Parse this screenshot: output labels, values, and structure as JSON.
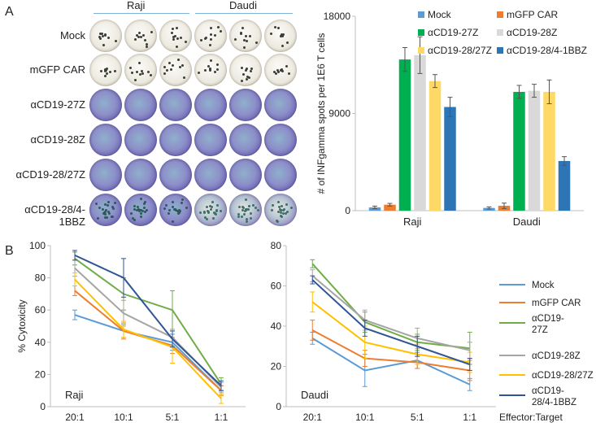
{
  "panel_a_label": "A",
  "panel_b_label": "B",
  "elispot": {
    "group_labels": [
      "Raji",
      "Daudi"
    ],
    "row_labels": [
      "Mock",
      "mGFP CAR",
      "αCD19-27Z",
      "αCD19-28Z",
      "αCD19-28/27Z",
      "αCD19-28/4-1BBZ"
    ]
  },
  "chart_data": [
    {
      "type": "bar",
      "title": "",
      "xlabel": "",
      "ylabel": "# of INFgamma spots per 1E6 T cells",
      "ylim": [
        0,
        18000
      ],
      "yticks": [
        "0",
        "9000",
        "18000"
      ],
      "yticks_values": [
        0,
        9000,
        18000
      ],
      "categories": [
        "Raji",
        "Daudi"
      ],
      "legend_position": "top",
      "series": [
        {
          "name": "Mock",
          "color": "#5b9bd5",
          "values": [
            300,
            250
          ],
          "errors": [
            120,
            100
          ]
        },
        {
          "name": "mGFP CAR",
          "color": "#ed7d31",
          "values": [
            550,
            450
          ],
          "errors": [
            120,
            250
          ]
        },
        {
          "name": "αCD19-27Z",
          "color": "#00b050",
          "values": [
            14000,
            11000
          ],
          "errors": [
            1100,
            600
          ]
        },
        {
          "name": "αCD19-28Z",
          "color": "#d9d9d9",
          "values": [
            14400,
            11100
          ],
          "errors": [
            1700,
            600
          ]
        },
        {
          "name": "αCD19-28/27Z",
          "color": "#ffd966",
          "values": [
            12000,
            11000
          ],
          "errors": [
            600,
            1100
          ]
        },
        {
          "name": "αCD19-28/4-1BBZ",
          "color": "#2e75b6",
          "values": [
            9600,
            4600
          ],
          "errors": [
            900,
            400
          ]
        }
      ]
    },
    {
      "type": "line",
      "title": "",
      "panel_label": "Raji",
      "ylabel": "% Cytoxicity",
      "ylim": [
        0,
        100
      ],
      "yticks": [
        "0",
        "20",
        "40",
        "60",
        "80",
        "100"
      ],
      "yticks_values": [
        0,
        20,
        40,
        60,
        80,
        100
      ],
      "categories": [
        "20:1",
        "10:1",
        "5:1",
        "1:1"
      ],
      "series": [
        {
          "name": "Mock",
          "color": "#5b9bd5",
          "values": [
            57,
            47,
            40,
            10
          ],
          "errors": [
            3,
            4,
            5,
            3
          ]
        },
        {
          "name": "mGFP CAR",
          "color": "#ed7d31",
          "values": [
            72,
            47,
            38,
            10
          ],
          "errors": [
            3,
            5,
            5,
            3
          ]
        },
        {
          "name": "αCD19-27Z",
          "color": "#70ad47",
          "values": [
            92,
            70,
            60,
            14
          ],
          "errors": [
            4,
            10,
            12,
            4
          ]
        },
        {
          "name": "αCD19-28Z",
          "color": "#a5a5a5",
          "values": [
            86,
            58,
            43,
            12
          ],
          "errors": [
            5,
            8,
            5,
            3
          ]
        },
        {
          "name": "αCD19-28/27Z",
          "color": "#ffc000",
          "values": [
            79,
            48,
            37,
            5
          ],
          "errors": [
            4,
            5,
            10,
            3
          ]
        },
        {
          "name": "αCD19-28/4-1BBZ",
          "color": "#2f5597",
          "values": [
            94,
            80,
            42,
            13
          ],
          "errors": [
            3,
            12,
            5,
            3
          ]
        }
      ]
    },
    {
      "type": "line",
      "title": "",
      "panel_label": "Daudi",
      "ylabel": "",
      "ylim": [
        0,
        80
      ],
      "yticks": [
        "0",
        "20",
        "40",
        "60",
        "80"
      ],
      "yticks_values": [
        0,
        20,
        40,
        60,
        80
      ],
      "categories": [
        "20:1",
        "10:1",
        "5:1",
        "1:1"
      ],
      "series": [
        {
          "name": "Mock",
          "color": "#5b9bd5",
          "values": [
            34,
            18,
            23,
            11
          ],
          "errors": [
            3,
            8,
            4,
            3
          ]
        },
        {
          "name": "mGFP CAR",
          "color": "#ed7d31",
          "values": [
            38,
            24,
            22,
            18
          ],
          "errors": [
            5,
            4,
            3,
            5
          ]
        },
        {
          "name": "αCD19-27Z",
          "color": "#70ad47",
          "values": [
            71,
            42,
            32,
            29
          ],
          "errors": [
            2,
            5,
            4,
            8
          ]
        },
        {
          "name": "αCD19-28Z",
          "color": "#a5a5a5",
          "values": [
            65,
            43,
            34,
            28
          ],
          "errors": [
            3,
            5,
            5,
            4
          ]
        },
        {
          "name": "αCD19-28/27Z",
          "color": "#ffc000",
          "values": [
            52,
            32,
            26,
            22
          ],
          "errors": [
            5,
            8,
            5,
            5
          ]
        },
        {
          "name": "αCD19-28/4-1BBZ",
          "color": "#2f5597",
          "values": [
            63,
            39,
            30,
            21
          ],
          "errors": [
            2,
            4,
            5,
            3
          ]
        }
      ]
    }
  ],
  "legend_b": [
    {
      "label": "Mock",
      "color": "#5b9bd5"
    },
    {
      "label": "mGFP CAR",
      "color": "#ed7d31"
    },
    {
      "label": "αCD19-\n27Z",
      "color": "#70ad47"
    },
    {
      "label": "αCD19-28Z",
      "color": "#a5a5a5"
    },
    {
      "label": "αCD19-28/27Z",
      "color": "#ffc000"
    },
    {
      "label": "αCD19-\n28/4-1BBZ",
      "color": "#2f5597"
    }
  ],
  "x_axis_title_b": "Effector:Target"
}
